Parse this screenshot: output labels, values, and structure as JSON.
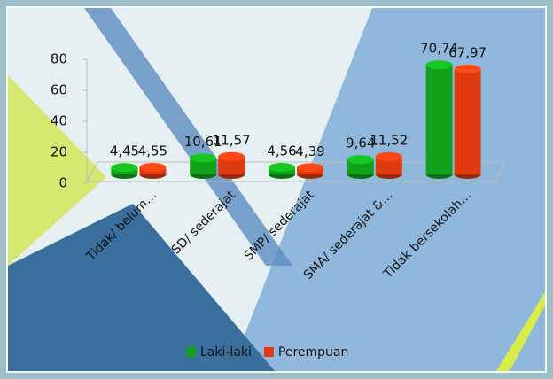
{
  "chart_data": {
    "type": "bar",
    "categories": [
      "Tidak/ belum…",
      "SD/ sederajat",
      "SMP/ sederajat",
      "SMA/ sederajat &…",
      "Tidak bersekolah…"
    ],
    "series": [
      {
        "name": "Laki-laki",
        "color": "#11a11a",
        "values": [
          4.45,
          10.61,
          4.56,
          9.64,
          70.74
        ],
        "value_labels": [
          "4,45",
          "10,61",
          "4,56",
          "9,64",
          "70,74"
        ]
      },
      {
        "name": "Perempuan",
        "color": "#e03a10",
        "values": [
          4.55,
          11.57,
          4.39,
          11.52,
          67.97
        ],
        "value_labels": [
          "4,55",
          "11,57",
          "4,39",
          "11,52",
          "67,97"
        ]
      }
    ],
    "ylim": [
      0,
      80
    ],
    "yticks": [
      0,
      20,
      40,
      60,
      80
    ],
    "legend": "bottom"
  }
}
